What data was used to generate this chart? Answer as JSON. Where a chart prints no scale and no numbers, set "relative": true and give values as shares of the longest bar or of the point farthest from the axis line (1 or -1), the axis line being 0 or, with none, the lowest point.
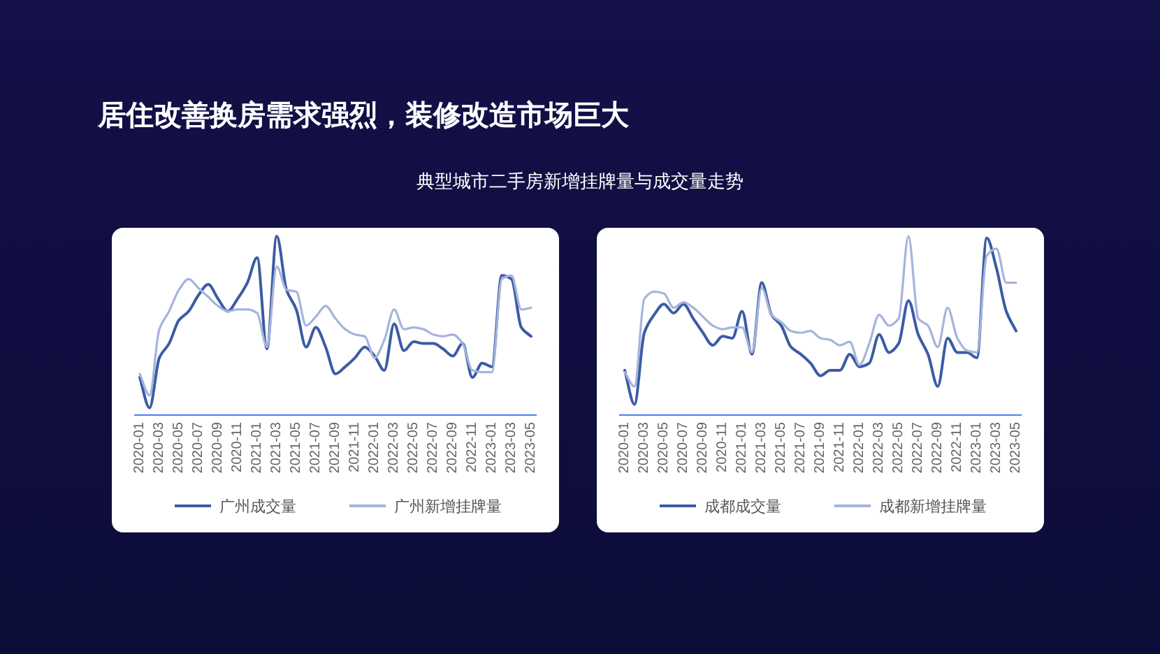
{
  "chart_data": [
    {
      "type": "line",
      "title": "居住改善换房需求强烈，装修改造市场巨大",
      "subtitle": "典型城市二手房新增挂牌量与成交量走势",
      "relative": true,
      "legend": "bottom",
      "categories": [
        "2020-01",
        null,
        "2020-03",
        null,
        "2020-05",
        null,
        "2020-07",
        null,
        "2020-09",
        null,
        "2020-11",
        null,
        "2021-01",
        null,
        "2021-03",
        null,
        "2021-05",
        null,
        "2021-07",
        null,
        "2021-09",
        null,
        "2021-11",
        null,
        "2022-01",
        null,
        "2022-03",
        null,
        "2022-05",
        null,
        "2022-07",
        null,
        "2022-09",
        null,
        "2022-11",
        null,
        "2023-01",
        null,
        "2023-03",
        null,
        "2023-05"
      ],
      "series": [
        {
          "name": "广州成交量",
          "color": "#3b5ba5",
          "values": [
            0.21,
            0.04,
            0.32,
            0.4,
            0.53,
            0.58,
            0.67,
            0.73,
            0.65,
            0.58,
            0.65,
            0.74,
            0.88,
            0.37,
            1,
            0.7,
            0.59,
            0.38,
            0.49,
            0.38,
            0.23,
            0.27,
            0.32,
            0.38,
            0.33,
            0.25,
            0.51,
            0.36,
            0.41,
            0.4,
            0.4,
            0.37,
            0.33,
            0.4,
            0.21,
            0.29,
            0.27,
            0.78,
            0.76,
            0.49,
            0.44
          ]
        },
        {
          "name": "广州新增挂牌量",
          "color": "#a4b4dc",
          "values": [
            0.23,
            0.11,
            0.48,
            0.58,
            0.7,
            0.76,
            0.71,
            0.66,
            0.61,
            0.58,
            0.59,
            0.59,
            0.57,
            0.38,
            0.83,
            0.7,
            0.69,
            0.5,
            0.55,
            0.61,
            0.54,
            0.48,
            0.45,
            0.44,
            0.32,
            0.42,
            0.59,
            0.48,
            0.49,
            0.48,
            0.45,
            0.44,
            0.45,
            0.4,
            0.25,
            0.24,
            0.24,
            0.76,
            0.78,
            0.59,
            0.6
          ]
        }
      ]
    },
    {
      "type": "line",
      "relative": true,
      "legend": "bottom",
      "categories": [
        "2020-01",
        null,
        "2020-03",
        null,
        "2020-05",
        null,
        "2020-07",
        null,
        "2020-09",
        null,
        "2020-11",
        null,
        "2021-01",
        null,
        "2021-03",
        null,
        "2021-05",
        null,
        "2021-07",
        null,
        "2021-09",
        null,
        "2021-11",
        null,
        "2022-01",
        null,
        "2022-03",
        null,
        "2022-05",
        null,
        "2022-07",
        null,
        "2022-09",
        null,
        "2022-11",
        null,
        "2023-01",
        null,
        "2023-03",
        null,
        "2023-05"
      ],
      "series": [
        {
          "name": "成都成交量",
          "color": "#3b5ba5",
          "values": [
            0.25,
            0.06,
            0.46,
            0.56,
            0.62,
            0.57,
            0.62,
            0.54,
            0.46,
            0.39,
            0.44,
            0.43,
            0.58,
            0.34,
            0.74,
            0.56,
            0.5,
            0.38,
            0.34,
            0.29,
            0.22,
            0.25,
            0.25,
            0.34,
            0.27,
            0.29,
            0.45,
            0.35,
            0.4,
            0.64,
            0.45,
            0.34,
            0.16,
            0.43,
            0.35,
            0.35,
            0.32,
            0.99,
            0.82,
            0.58,
            0.47
          ]
        },
        {
          "name": "成都新增挂牌量",
          "color": "#a4b4dc",
          "values": [
            0.24,
            0.16,
            0.65,
            0.69,
            0.68,
            0.6,
            0.63,
            0.6,
            0.55,
            0.5,
            0.48,
            0.49,
            0.49,
            0.35,
            0.71,
            0.56,
            0.52,
            0.47,
            0.46,
            0.47,
            0.43,
            0.42,
            0.39,
            0.41,
            0.28,
            0.4,
            0.56,
            0.5,
            0.54,
            1,
            0.54,
            0.5,
            0.38,
            0.6,
            0.43,
            0.36,
            0.35,
            0.89,
            0.93,
            0.74,
            0.74
          ]
        }
      ]
    }
  ]
}
